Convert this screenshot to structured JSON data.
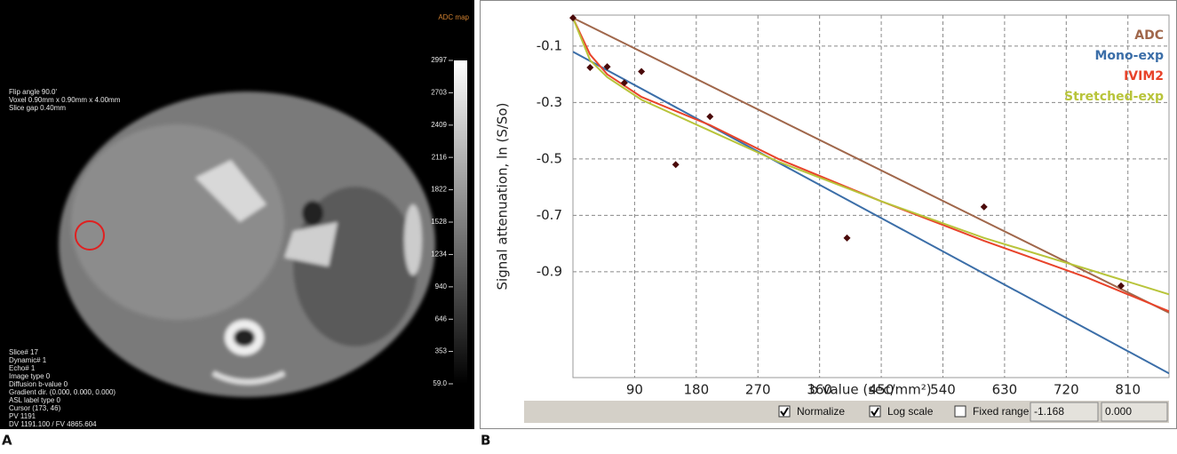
{
  "panel_labels": [
    "A",
    "B"
  ],
  "panel_a": {
    "map_label": "ADC map",
    "header_lines": [
      "Flip angle 90.0'",
      "Voxel 0.90mm x 0.90mm x 4.00mm",
      "Slice gap 0.40mm"
    ],
    "footer_lines": [
      "Slice# 17",
      "Dynamic# 1",
      "Echo# 1",
      "Image type 0",
      "Diffusion b-value 0",
      "Gradient dir. (0.000, 0.000, 0.000)",
      "ASL label type 0",
      "Cursor (173, 46)",
      "PV 1191",
      "DV 1191.100 / FV 4865.604"
    ],
    "colorbar_ticks": [
      2997,
      2703,
      2409,
      2116,
      1822,
      1528,
      1234,
      940,
      646,
      353,
      {
        "value": 59,
        "label": "59.0"
      }
    ],
    "colorbar_lim": [
      59,
      2997
    ]
  },
  "chart_data": {
    "type": "line",
    "x_label": "b value (sec/mm²)",
    "y_label": "Signal attenuation, ln (S/So)",
    "xlim": [
      0,
      870
    ],
    "ylim": [
      -1.275,
      0.01
    ],
    "xticks": [
      90,
      180,
      270,
      360,
      450,
      540,
      630,
      720,
      810
    ],
    "yticks": [
      -0.1,
      -0.3,
      -0.5,
      -0.7,
      -0.9
    ],
    "grid": true,
    "legend": "top-right",
    "series": [
      {
        "name": "ADC",
        "color": "#a0674b",
        "x": [
          0,
          870
        ],
        "values": [
          0,
          -1.045
        ]
      },
      {
        "name": "Mono-exp",
        "color": "#3b6ea8",
        "x": [
          0,
          870
        ],
        "values": [
          -0.12,
          -1.26
        ]
      },
      {
        "name": "IVIM2",
        "color": "#e8432a",
        "x": [
          0,
          25,
          50,
          100,
          200,
          300,
          450,
          600,
          750,
          870
        ],
        "values": [
          0,
          -0.13,
          -0.2,
          -0.28,
          -0.38,
          -0.5,
          -0.65,
          -0.79,
          -0.92,
          -1.04
        ]
      },
      {
        "name": "Stretched-exp",
        "color": "#b8c43a",
        "x": [
          0,
          25,
          50,
          100,
          200,
          300,
          450,
          600,
          750,
          870
        ],
        "values": [
          0,
          -0.15,
          -0.21,
          -0.29,
          -0.4,
          -0.51,
          -0.65,
          -0.78,
          -0.89,
          -0.98
        ]
      }
    ],
    "points": {
      "color": "#4a0a0a",
      "x": [
        0,
        25,
        50,
        75,
        100,
        150,
        200,
        400,
        600,
        800
      ],
      "values": [
        0,
        -0.176,
        -0.173,
        -0.23,
        -0.19,
        -0.52,
        -0.35,
        -0.78,
        -0.67,
        -0.95
      ]
    }
  },
  "toolbar": {
    "checkboxes": [
      {
        "label": "Normalize",
        "checked": true
      },
      {
        "label": "Log scale",
        "checked": true
      },
      {
        "label": "Fixed range",
        "checked": false
      }
    ],
    "range_fields": [
      "-1.168",
      "0.000"
    ]
  }
}
